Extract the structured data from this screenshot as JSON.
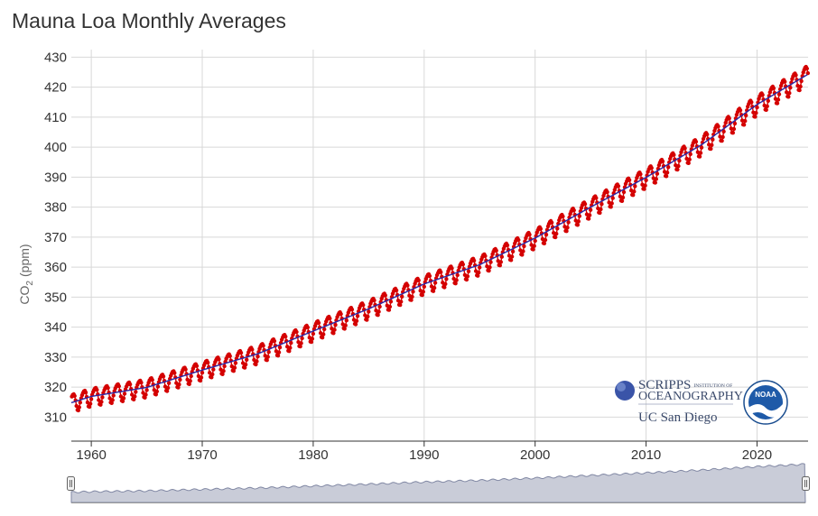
{
  "chart_data": {
    "type": "line",
    "title": "Mauna Loa Monthly Averages",
    "ylabel": {
      "main": "CO",
      "sub": "2",
      "unit": "(ppm)"
    },
    "xlabel": "",
    "x_range": [
      1958.2,
      2024.6
    ],
    "ylim": [
      302,
      432.5
    ],
    "x_ticks": [
      1960,
      1970,
      1980,
      1990,
      2000,
      2010,
      2020
    ],
    "y_ticks": [
      310,
      320,
      330,
      340,
      350,
      360,
      370,
      380,
      390,
      400,
      410,
      420,
      430
    ],
    "grid": true,
    "series": [
      {
        "role": "monthly-mean",
        "color": "#d40000",
        "markers": true,
        "seasonal_amplitude_ppm": 3.2
      },
      {
        "role": "trend",
        "color": "#2a2aa8",
        "markers": false
      }
    ],
    "trend_points": [
      {
        "x": 1958.2,
        "y": 314.8
      },
      {
        "x": 1960,
        "y": 316.9
      },
      {
        "x": 1965,
        "y": 319.9
      },
      {
        "x": 1970,
        "y": 325.7
      },
      {
        "x": 1975,
        "y": 331.1
      },
      {
        "x": 1980,
        "y": 338.7
      },
      {
        "x": 1985,
        "y": 346.1
      },
      {
        "x": 1990,
        "y": 354.4
      },
      {
        "x": 1995,
        "y": 360.8
      },
      {
        "x": 2000,
        "y": 369.7
      },
      {
        "x": 2005,
        "y": 380.0
      },
      {
        "x": 2010,
        "y": 389.9
      },
      {
        "x": 2015,
        "y": 400.8
      },
      {
        "x": 2020,
        "y": 414.2
      },
      {
        "x": 2024.6,
        "y": 424.3
      }
    ]
  },
  "logos": {
    "scripps_line1": "SCRIPPS",
    "scripps_small": "INSTITUTION OF",
    "scripps_line2": "OCEANOGRAPHY",
    "ucsd": "UC San Diego",
    "noaa": "NOAA"
  },
  "colors": {
    "grid": "#d8d8d8",
    "axis": "#333333",
    "navigator_fill": "#c9ccd8",
    "navigator_line": "#8087a3",
    "navigator_border": "#999999"
  }
}
